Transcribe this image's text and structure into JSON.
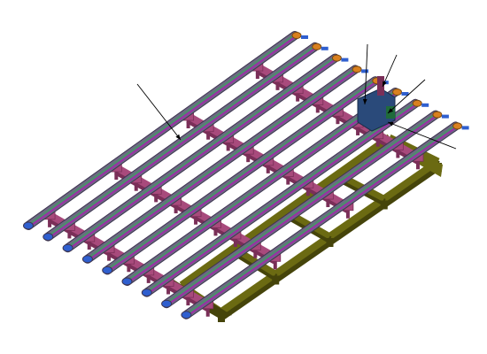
{
  "figure": {
    "kind": "isometric cad assembly",
    "parts": {
      "tube_count": 9,
      "crossbar_count": 4,
      "frame_crossbar_count": 5,
      "leader_count": 5
    },
    "colors": {
      "tube_outer": "#6f6684",
      "tube_inner": "#9b2fa6",
      "tube_stripe": "#4f8a6e",
      "tube_edge": "#3c3550",
      "crossbar": "#a84a7c",
      "crossbar_dark": "#7a2f58",
      "frame": "#6b6a12",
      "frame_dark": "#45440a",
      "cap_far": "#d9801f",
      "cap_near": "#2f5fcf",
      "manifold": "#2a4a7a",
      "leader": "#000000"
    }
  }
}
